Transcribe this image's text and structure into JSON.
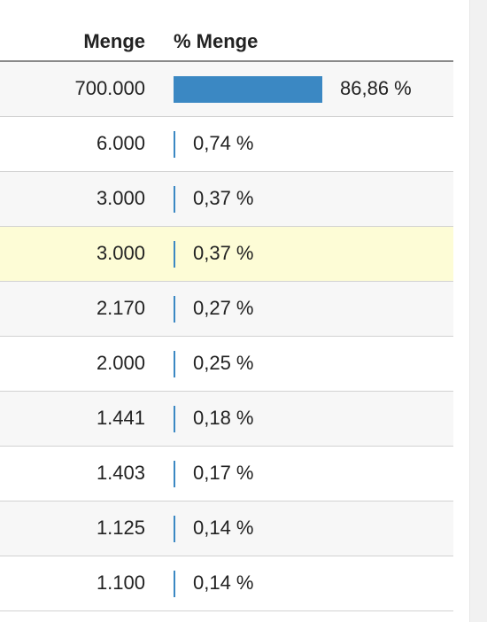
{
  "table": {
    "columns": {
      "quantity": "Menge",
      "percent": "% Menge"
    },
    "accent_color": "#3b88c3",
    "highlight_color": "#fdfcd6",
    "rows": [
      {
        "quantity": "700.000",
        "percent": "86,86 %",
        "share": 0.8686
      },
      {
        "quantity": "6.000",
        "percent": "0,74 %",
        "share": 0.0074
      },
      {
        "quantity": "3.000",
        "percent": "0,37 %",
        "share": 0.0037
      },
      {
        "quantity": "3.000",
        "percent": "0,37 %",
        "share": 0.0037,
        "highlighted": true
      },
      {
        "quantity": "2.170",
        "percent": "0,27 %",
        "share": 0.0027
      },
      {
        "quantity": "2.000",
        "percent": "0,25 %",
        "share": 0.0025
      },
      {
        "quantity": "1.441",
        "percent": "0,18 %",
        "share": 0.0018
      },
      {
        "quantity": "1.403",
        "percent": "0,17 %",
        "share": 0.0017
      },
      {
        "quantity": "1.125",
        "percent": "0,14 %",
        "share": 0.0014
      },
      {
        "quantity": "1.100",
        "percent": "0,14 %",
        "share": 0.0014
      }
    ]
  }
}
